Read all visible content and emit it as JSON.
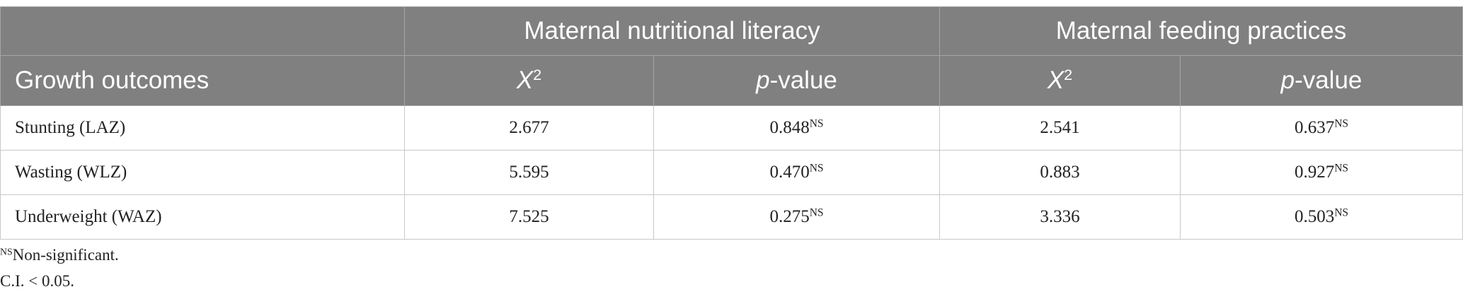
{
  "table": {
    "header": {
      "groups": [
        "Maternal nutritional literacy",
        "Maternal feeding practices"
      ],
      "row_label": "Growth outcomes",
      "columns": [
        {
          "symbol": "X",
          "sup": "2"
        },
        {
          "italic": "p",
          "rest": "-value"
        },
        {
          "symbol": "X",
          "sup": "2"
        },
        {
          "italic": "p",
          "rest": "-value"
        }
      ]
    },
    "rows": [
      [
        "Stunting (LAZ)",
        "2.677",
        {
          "value": "0.848",
          "sup": "NS"
        },
        "2.541",
        {
          "value": "0.637",
          "sup": "NS"
        }
      ],
      [
        "Wasting (WLZ)",
        "5.595",
        {
          "value": "0.470",
          "sup": "NS"
        },
        "0.883",
        {
          "value": "0.927",
          "sup": "NS"
        }
      ],
      [
        "Underweight (WAZ)",
        "7.525",
        {
          "value": "0.275",
          "sup": "NS"
        },
        "3.336",
        {
          "value": "0.503",
          "sup": "NS"
        }
      ]
    ]
  },
  "footnotes": [
    {
      "sup": "NS",
      "text": "Non-significant."
    },
    {
      "text": "C.I. < 0.05."
    }
  ]
}
